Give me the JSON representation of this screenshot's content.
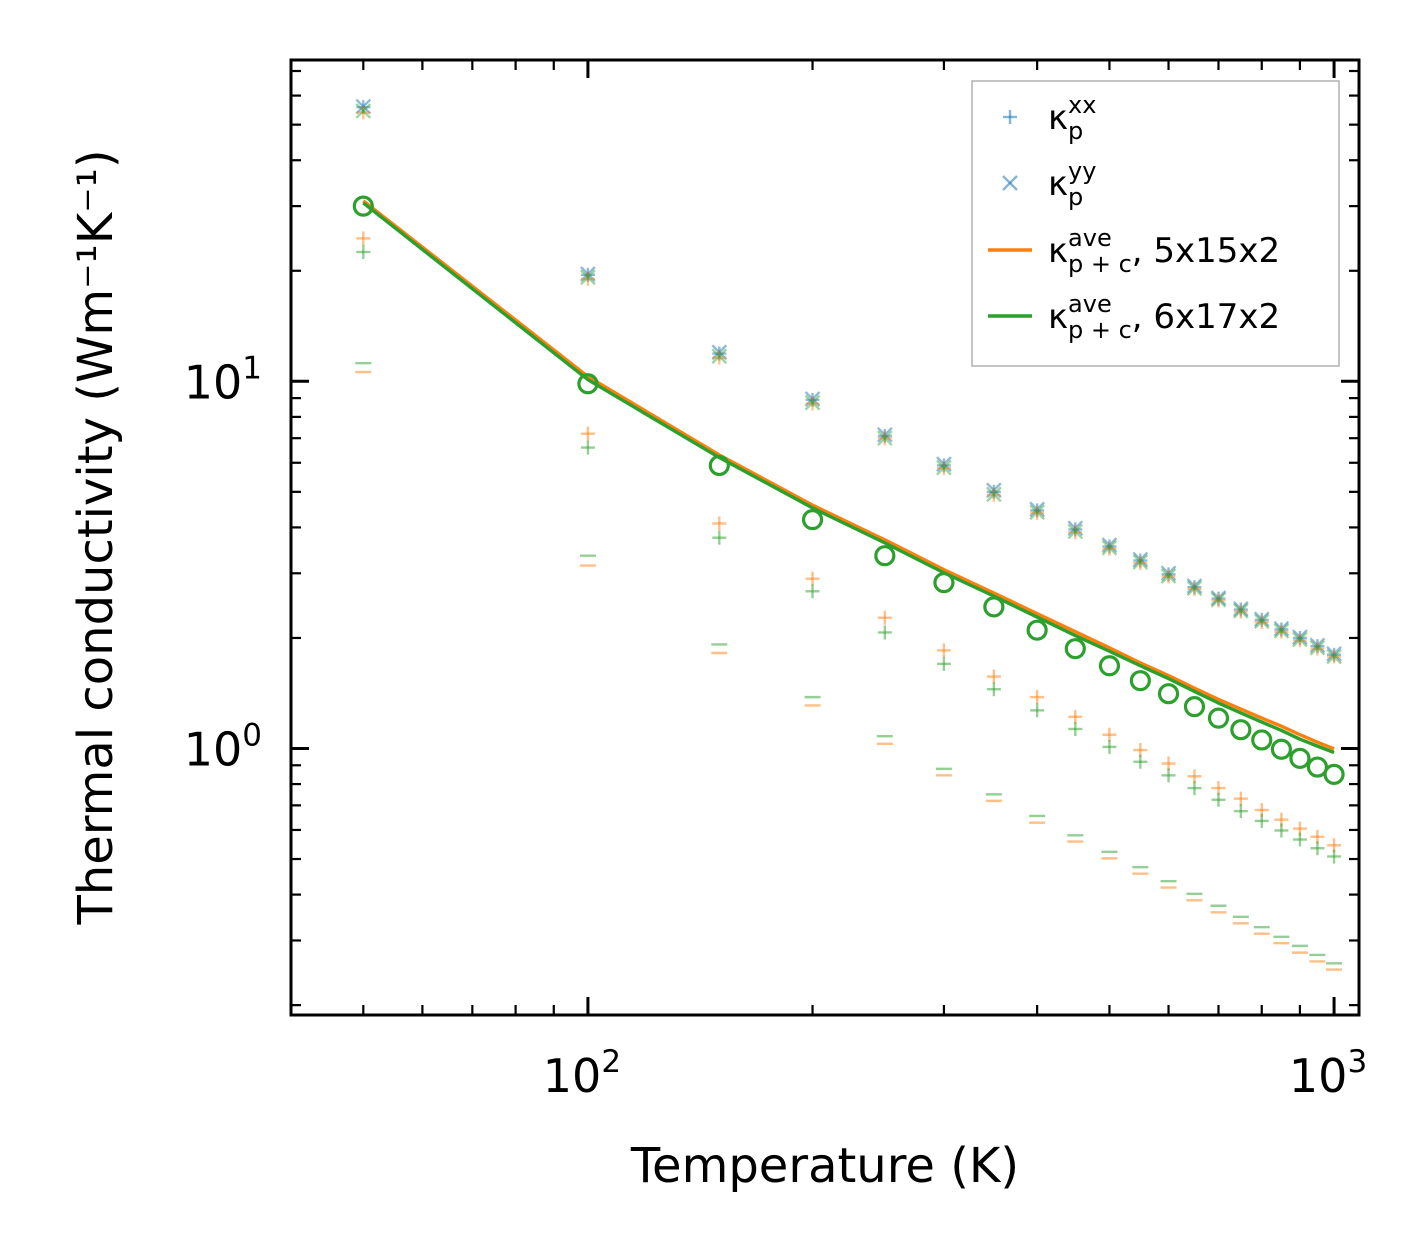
{
  "chart_data": {
    "type": "scatter",
    "xscale": "log",
    "yscale": "log",
    "xlim": [
      40,
      1080
    ],
    "ylim": [
      0.188,
      75
    ],
    "xlabel": "Temperature (K)",
    "ylabel": "Thermal conductivity (Wm⁻¹K⁻¹)",
    "xticks": [
      {
        "base": "10",
        "exp": "2",
        "value": 100
      },
      {
        "base": "10",
        "exp": "3",
        "value": 1000
      }
    ],
    "yticks": [
      {
        "base": "10",
        "exp": "0",
        "value": 1
      },
      {
        "base": "10",
        "exp": "1",
        "value": 10
      }
    ],
    "colors": {
      "blue": "#1f77b4",
      "orange": "#ff7f0e",
      "green": "#2ca02c"
    },
    "x": [
      50,
      100,
      150,
      200,
      250,
      300,
      350,
      400,
      450,
      500,
      550,
      600,
      650,
      700,
      750,
      800,
      850,
      900,
      950,
      1000
    ],
    "series": [
      {
        "name": "kp_xx_mesh1",
        "marker": "plus",
        "color": "#1f77b4",
        "alpha": 0.5,
        "values": [
          55.8,
          19.5,
          11.9,
          8.9,
          7.1,
          5.9,
          5.0,
          4.45,
          3.95,
          3.55,
          3.25,
          2.98,
          2.75,
          2.56,
          2.39,
          2.24,
          2.11,
          2.0,
          1.9,
          1.8
        ]
      },
      {
        "name": "kp_yy_mesh1",
        "marker": "x",
        "color": "#1f77b4",
        "alpha": 0.5,
        "values": [
          56.0,
          19.6,
          12.0,
          8.95,
          7.15,
          5.95,
          5.05,
          4.48,
          3.98,
          3.58,
          3.27,
          3.0,
          2.77,
          2.57,
          2.4,
          2.25,
          2.12,
          2.01,
          1.91,
          1.81
        ]
      },
      {
        "name": "kp_xx_mesh2",
        "marker": "plus",
        "color": "#ff7f0e",
        "alpha": 0.45,
        "values": [
          54.0,
          19.0,
          11.6,
          8.7,
          7.0,
          5.8,
          4.9,
          4.38,
          3.88,
          3.5,
          3.2,
          2.94,
          2.72,
          2.53,
          2.36,
          2.21,
          2.08,
          1.97,
          1.87,
          1.78
        ]
      },
      {
        "name": "kp_yy_mesh2",
        "marker": "x",
        "color": "#2ca02c",
        "alpha": 0.45,
        "values": [
          54.5,
          19.2,
          11.7,
          8.75,
          7.0,
          5.82,
          4.92,
          4.4,
          3.9,
          3.52,
          3.22,
          2.95,
          2.73,
          2.54,
          2.37,
          2.22,
          2.09,
          1.98,
          1.88,
          1.78
        ]
      },
      {
        "name": "kp_zz_mesh1",
        "marker": "plus",
        "color": "#ff7f0e",
        "alpha": 0.5,
        "values": [
          24.5,
          7.2,
          4.1,
          2.9,
          2.27,
          1.85,
          1.57,
          1.38,
          1.22,
          1.09,
          0.99,
          0.91,
          0.84,
          0.78,
          0.73,
          0.68,
          0.64,
          0.605,
          0.575,
          0.545
        ]
      },
      {
        "name": "kp_zz_mesh2",
        "marker": "plus",
        "color": "#2ca02c",
        "alpha": 0.5,
        "values": [
          22.5,
          6.6,
          3.75,
          2.68,
          2.07,
          1.7,
          1.45,
          1.27,
          1.13,
          1.01,
          0.92,
          0.845,
          0.78,
          0.725,
          0.675,
          0.635,
          0.598,
          0.565,
          0.535,
          0.508
        ]
      },
      {
        "name": "kc_mesh1",
        "marker": "hline",
        "color": "#ff7f0e",
        "alpha": 0.5,
        "values": [
          10.6,
          3.15,
          1.82,
          1.31,
          1.03,
          0.845,
          0.72,
          0.628,
          0.558,
          0.502,
          0.456,
          0.418,
          0.386,
          0.358,
          0.334,
          0.313,
          0.295,
          0.278,
          0.263,
          0.25
        ]
      },
      {
        "name": "kc_mesh2",
        "marker": "hline",
        "color": "#2ca02c",
        "alpha": 0.5,
        "values": [
          11.2,
          3.35,
          1.92,
          1.38,
          1.08,
          0.88,
          0.75,
          0.655,
          0.58,
          0.523,
          0.475,
          0.435,
          0.402,
          0.373,
          0.348,
          0.326,
          0.307,
          0.29,
          0.274,
          0.26
        ]
      },
      {
        "name": "kp_ave_points",
        "marker": "circle",
        "color": "#2ca02c",
        "alpha": 1.0,
        "values": [
          30.0,
          9.85,
          5.9,
          4.2,
          3.35,
          2.83,
          2.43,
          2.1,
          1.87,
          1.68,
          1.53,
          1.41,
          1.3,
          1.21,
          1.125,
          1.055,
          0.995,
          0.94,
          0.89,
          0.85
        ]
      },
      {
        "name": "kpc_ave_5x15x2",
        "marker": "line",
        "color": "#ff7f0e",
        "alpha": 1.0,
        "values": [
          31.0,
          10.3,
          6.3,
          4.6,
          3.7,
          3.07,
          2.65,
          2.33,
          2.08,
          1.88,
          1.71,
          1.58,
          1.46,
          1.36,
          1.28,
          1.21,
          1.15,
          1.09,
          1.04,
          0.998
        ]
      },
      {
        "name": "kpc_ave_6x17x2",
        "marker": "line",
        "color": "#2ca02c",
        "alpha": 1.0,
        "values": [
          30.6,
          10.1,
          6.2,
          4.52,
          3.63,
          3.01,
          2.6,
          2.28,
          2.03,
          1.84,
          1.68,
          1.55,
          1.43,
          1.33,
          1.25,
          1.18,
          1.12,
          1.06,
          1.015,
          0.975
        ]
      }
    ],
    "legend": {
      "position": "top-right",
      "entries": [
        {
          "label": "κ",
          "sub": "p",
          "sup": "xx",
          "tail": "",
          "marker": "plus",
          "color": "#1f77b4"
        },
        {
          "label": "κ",
          "sub": "p",
          "sup": "yy",
          "tail": "",
          "marker": "x",
          "color": "#1f77b4"
        },
        {
          "label": "κ",
          "sub": "p + c",
          "sup": "ave",
          "tail": ", 5x15x2",
          "marker": "line",
          "color": "#ff7f0e"
        },
        {
          "label": "κ",
          "sub": "p + c",
          "sup": "ave",
          "tail": ", 6x17x2",
          "marker": "line",
          "color": "#2ca02c"
        }
      ]
    }
  }
}
